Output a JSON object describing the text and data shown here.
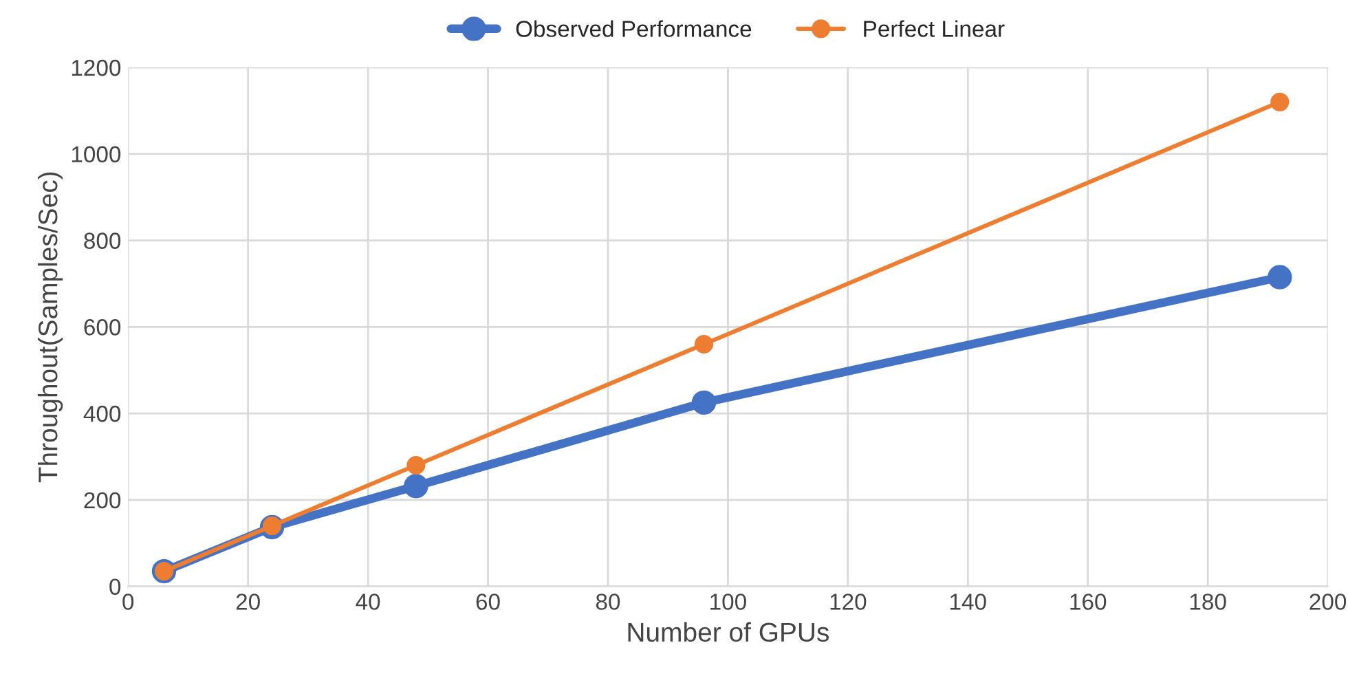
{
  "chart_data": {
    "type": "line",
    "xlabel": "Number of GPUs",
    "ylabel": "Throughout(Samples/Sec)",
    "x": [
      6,
      24,
      48,
      96,
      192
    ],
    "series": [
      {
        "name": "Observed Performance",
        "color": "#4472c4",
        "values": [
          35,
          137,
          232,
          425,
          715
        ]
      },
      {
        "name": "Perfect Linear",
        "color": "#ed7d31",
        "values": [
          35,
          140,
          280,
          560,
          1120
        ]
      }
    ],
    "xlim": [
      0,
      200
    ],
    "xticks": [
      0,
      20,
      40,
      60,
      80,
      100,
      120,
      140,
      160,
      180,
      200
    ],
    "ylim": [
      0,
      1200
    ],
    "yticks": [
      0,
      200,
      400,
      600,
      800,
      1000,
      1200
    ],
    "grid": true,
    "legend": "top",
    "marker": "circle",
    "line_style": "solid"
  }
}
